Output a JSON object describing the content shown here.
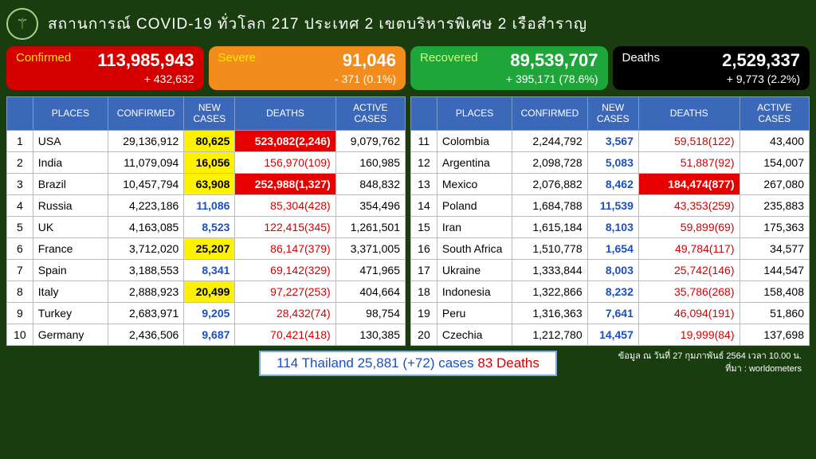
{
  "header": {
    "title": "สถานการณ์ COVID-19 ทั่วโลก 217 ประเทศ 2 เขตบริหารพิเศษ 2 เรือสำราญ",
    "logo_glyph": "⚚"
  },
  "stats": [
    {
      "label": "Confirmed",
      "value": "113,985,943",
      "change": "+ 432,632",
      "bg": "#d40000",
      "labelColor": "#ffe600"
    },
    {
      "label": "Severe",
      "value": "91,046",
      "change": "- 371 (0.1%)",
      "bg": "#f28c1c",
      "labelColor": "#ffe600"
    },
    {
      "label": "Recovered",
      "value": "89,539,707",
      "change": "+ 395,171 (78.6%)",
      "bg": "#1fa63a",
      "labelColor": "#c6ff7a"
    },
    {
      "label": "Deaths",
      "value": "2,529,337",
      "change": "+ 9,773 (2.2%)",
      "bg": "#000000",
      "labelColor": "#ffffff"
    }
  ],
  "columns": [
    "PLACES",
    "CONFIRMED",
    "NEW CASES",
    "DEATHS",
    "ACTIVE CASES"
  ],
  "left": [
    {
      "rank": "1",
      "place": "USA",
      "conf": "29,136,912",
      "new": "80,625",
      "newHl": "yellow",
      "deaths": "523,082(2,246)",
      "deathsHl": "red",
      "active": "9,079,762"
    },
    {
      "rank": "2",
      "place": "India",
      "conf": "11,079,094",
      "new": "16,056",
      "newHl": "yellow",
      "deaths": "156,970(109)",
      "deathsHl": "",
      "active": "160,985"
    },
    {
      "rank": "3",
      "place": "Brazil",
      "conf": "10,457,794",
      "new": "63,908",
      "newHl": "yellow",
      "deaths": "252,988(1,327)",
      "deathsHl": "red",
      "active": "848,832"
    },
    {
      "rank": "4",
      "place": "Russia",
      "conf": "4,223,186",
      "new": "11,086",
      "newHl": "blue",
      "deaths": "85,304(428)",
      "deathsHl": "",
      "active": "354,496"
    },
    {
      "rank": "5",
      "place": "UK",
      "conf": "4,163,085",
      "new": "8,523",
      "newHl": "blue",
      "deaths": "122,415(345)",
      "deathsHl": "",
      "active": "1,261,501"
    },
    {
      "rank": "6",
      "place": "France",
      "conf": "3,712,020",
      "new": "25,207",
      "newHl": "yellow",
      "deaths": "86,147(379)",
      "deathsHl": "",
      "active": "3,371,005"
    },
    {
      "rank": "7",
      "place": "Spain",
      "conf": "3,188,553",
      "new": "8,341",
      "newHl": "blue",
      "deaths": "69,142(329)",
      "deathsHl": "",
      "active": "471,965"
    },
    {
      "rank": "8",
      "place": "Italy",
      "conf": "2,888,923",
      "new": "20,499",
      "newHl": "yellow",
      "deaths": "97,227(253)",
      "deathsHl": "",
      "active": "404,664"
    },
    {
      "rank": "9",
      "place": "Turkey",
      "conf": "2,683,971",
      "new": "9,205",
      "newHl": "blue",
      "deaths": "28,432(74)",
      "deathsHl": "",
      "active": "98,754"
    },
    {
      "rank": "10",
      "place": "Germany",
      "conf": "2,436,506",
      "new": "9,687",
      "newHl": "blue",
      "deaths": "70,421(418)",
      "deathsHl": "",
      "active": "130,385"
    }
  ],
  "right": [
    {
      "rank": "11",
      "place": "Colombia",
      "conf": "2,244,792",
      "new": "3,567",
      "newHl": "blue",
      "deaths": "59,518(122)",
      "deathsHl": "",
      "active": "43,400"
    },
    {
      "rank": "12",
      "place": "Argentina",
      "conf": "2,098,728",
      "new": "5,083",
      "newHl": "blue",
      "deaths": "51,887(92)",
      "deathsHl": "",
      "active": "154,007"
    },
    {
      "rank": "13",
      "place": "Mexico",
      "conf": "2,076,882",
      "new": "8,462",
      "newHl": "blue",
      "deaths": "184,474(877)",
      "deathsHl": "red",
      "active": "267,080"
    },
    {
      "rank": "14",
      "place": "Poland",
      "conf": "1,684,788",
      "new": "11,539",
      "newHl": "blue",
      "deaths": "43,353(259)",
      "deathsHl": "",
      "active": "235,883"
    },
    {
      "rank": "15",
      "place": "Iran",
      "conf": "1,615,184",
      "new": "8,103",
      "newHl": "blue",
      "deaths": "59,899(69)",
      "deathsHl": "",
      "active": "175,363"
    },
    {
      "rank": "16",
      "place": "South Africa",
      "conf": "1,510,778",
      "new": "1,654",
      "newHl": "blue",
      "deaths": "49,784(117)",
      "deathsHl": "",
      "active": "34,577"
    },
    {
      "rank": "17",
      "place": "Ukraine",
      "conf": "1,333,844",
      "new": "8,003",
      "newHl": "blue",
      "deaths": "25,742(146)",
      "deathsHl": "",
      "active": "144,547"
    },
    {
      "rank": "18",
      "place": "Indonesia",
      "conf": "1,322,866",
      "new": "8,232",
      "newHl": "blue",
      "deaths": "35,786(268)",
      "deathsHl": "",
      "active": "158,408"
    },
    {
      "rank": "19",
      "place": "Peru",
      "conf": "1,316,363",
      "new": "7,641",
      "newHl": "blue",
      "deaths": "46,094(191)",
      "deathsHl": "",
      "active": "51,860"
    },
    {
      "rank": "20",
      "place": "Czechia",
      "conf": "1,212,780",
      "new": "14,457",
      "newHl": "blue",
      "deaths": "19,999(84)",
      "deathsHl": "",
      "active": "137,698"
    }
  ],
  "footer": {
    "rank": "114",
    "country": "Thailand 25,881 (+72) cases",
    "deaths": "83 Deaths",
    "meta1": "ข้อมูล ณ วันที่ 27 กุมภาพันธ์ 2564 เวลา 10.00 น.",
    "meta2": "ที่มา : worldometers"
  }
}
